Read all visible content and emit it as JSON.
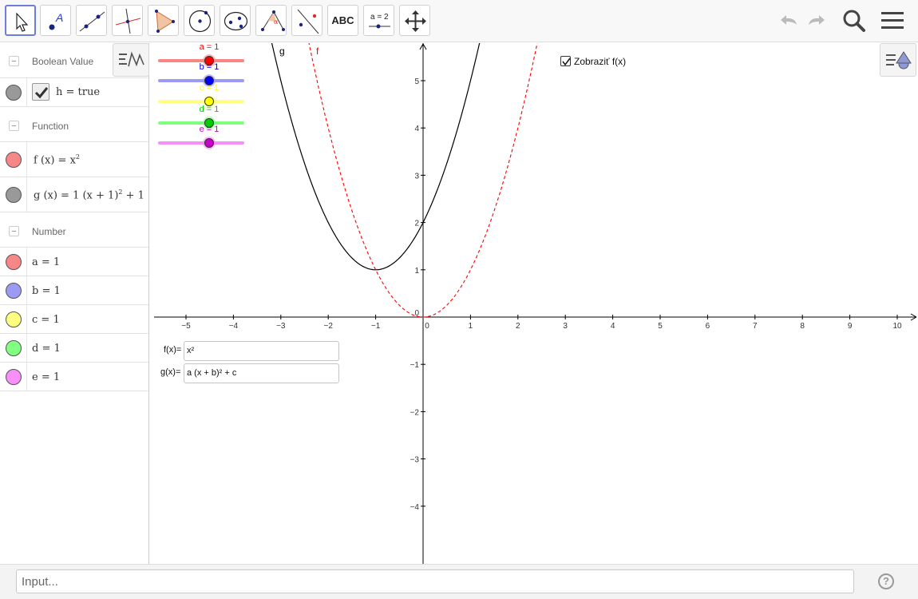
{
  "toolbar": {
    "tools": [
      {
        "name": "move-tool-icon",
        "selected": true
      },
      {
        "name": "point-tool-icon",
        "letter": "A"
      },
      {
        "name": "line-tool-icon"
      },
      {
        "name": "perpendicular-line-tool-icon"
      },
      {
        "name": "polygon-tool-icon"
      },
      {
        "name": "circle-tool-icon"
      },
      {
        "name": "ellipse-tool-icon"
      },
      {
        "name": "angle-tool-icon",
        "letter": "α"
      },
      {
        "name": "reflect-tool-icon"
      },
      {
        "name": "text-tool-icon",
        "label": "ABC"
      },
      {
        "name": "slider-tool-icon",
        "label": "a = 2"
      },
      {
        "name": "move-graphics-view-tool-icon"
      }
    ],
    "right": [
      "undo-icon",
      "redo-icon",
      "search-icon",
      "menu-icon"
    ]
  },
  "algebra": {
    "boolean_group": "Boolean Value",
    "boolean_item": "h = true",
    "function_group": "Function",
    "function_f": {
      "lhs": "f (x) = x",
      "sup": "2"
    },
    "function_g": {
      "lhs": "g (x) = 1 (x + 1)",
      "sup": "2",
      "rhs": " + 1"
    },
    "number_group": "Number",
    "numbers": [
      {
        "label": "a = 1",
        "color": "#f78686"
      },
      {
        "label": "b = 1",
        "color": "#9b9bf4"
      },
      {
        "label": "c = 1",
        "color": "#ffff80"
      },
      {
        "label": "d = 1",
        "color": "#80ff80"
      },
      {
        "label": "e = 1",
        "color": "#f88ef8"
      }
    ],
    "bool_color": "#999999",
    "f_color": "#f78686",
    "g_color": "#999999"
  },
  "graphics": {
    "axes": {
      "x_labels": [
        "−5",
        "−4",
        "−3",
        "−2",
        "−1",
        "0",
        "1",
        "2",
        "3",
        "4",
        "5",
        "6",
        "7",
        "8",
        "9",
        "10"
      ],
      "y_labels": [
        "5",
        "4",
        "3",
        "2",
        "1",
        "−1",
        "−2",
        "−3",
        "−4"
      ]
    },
    "curve_g_label": "g",
    "curve_f_label": "f",
    "sliders": [
      {
        "label": "a = 1",
        "color": "#ff0000",
        "track": "#f78686",
        "value": 1
      },
      {
        "label": "b = 1",
        "color": "#0000ff",
        "track": "#9b9bf4",
        "value": 1
      },
      {
        "label": "c = 1",
        "color": "#ffff00",
        "track": "#ffff80",
        "value": 1
      },
      {
        "label": "d = 1",
        "color": "#00cc00",
        "track": "#80ff80",
        "value": 1
      },
      {
        "label": "e = 1",
        "color": "#cc00cc",
        "track": "#f88ef8",
        "value": 1
      }
    ],
    "f_input_label": "f(x)=",
    "f_input_value": "x²",
    "g_input_label": "g(x)=",
    "g_input_value": "a (x + b)² + c",
    "checkbox_label": "Zobraziť f(x)",
    "checkbox_checked": true,
    "g_color": "#000000",
    "f_color": "#ff0000"
  },
  "input_bar": {
    "placeholder": "Input...",
    "help": "?"
  }
}
